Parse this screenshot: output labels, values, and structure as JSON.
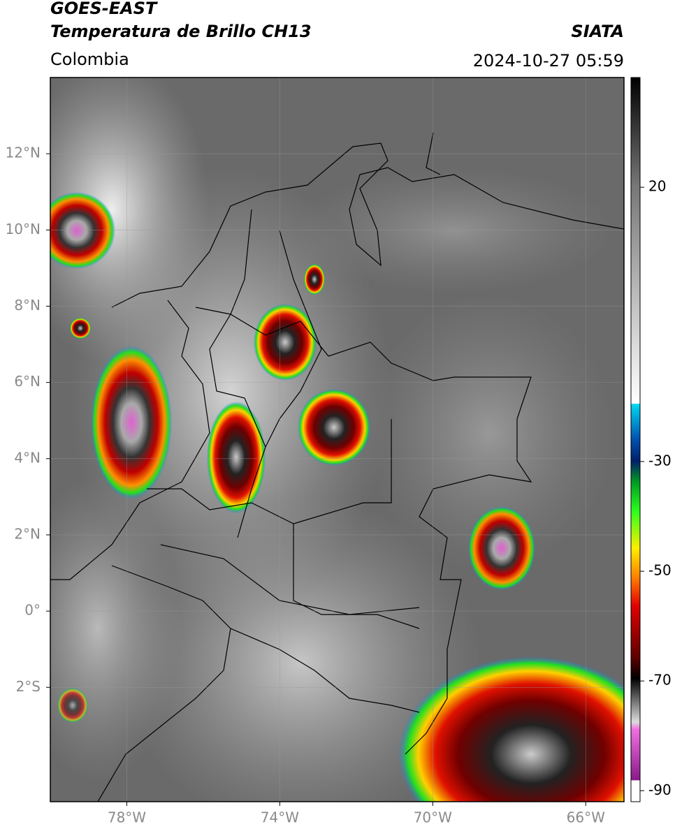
{
  "header": {
    "title": "GOES-EAST",
    "subtitle": "Temperatura de Brillo CH13",
    "region": "Colombia",
    "source": "SIATA",
    "datetime": "2024-10-27 05:59"
  },
  "map": {
    "xlim": [
      -80,
      -65
    ],
    "ylim": [
      -5,
      14
    ],
    "xticks": [
      {
        "value": -78,
        "label": "78°W"
      },
      {
        "value": -74,
        "label": "74°W"
      },
      {
        "value": -70,
        "label": "70°W"
      },
      {
        "value": -66,
        "label": "66°W"
      }
    ],
    "yticks": [
      {
        "value": 12,
        "label": "12°N"
      },
      {
        "value": 10,
        "label": "10°N"
      },
      {
        "value": 8,
        "label": "8°N"
      },
      {
        "value": 6,
        "label": "6°N"
      },
      {
        "value": 4,
        "label": "4°N"
      },
      {
        "value": 2,
        "label": "2°N"
      },
      {
        "value": 0,
        "label": "0°"
      },
      {
        "value": -2,
        "label": "2°S"
      }
    ],
    "grid": true
  },
  "colorbar": {
    "lim": [
      -92,
      40
    ],
    "ticks": [
      20,
      -30,
      -50,
      -70,
      -90
    ]
  }
}
